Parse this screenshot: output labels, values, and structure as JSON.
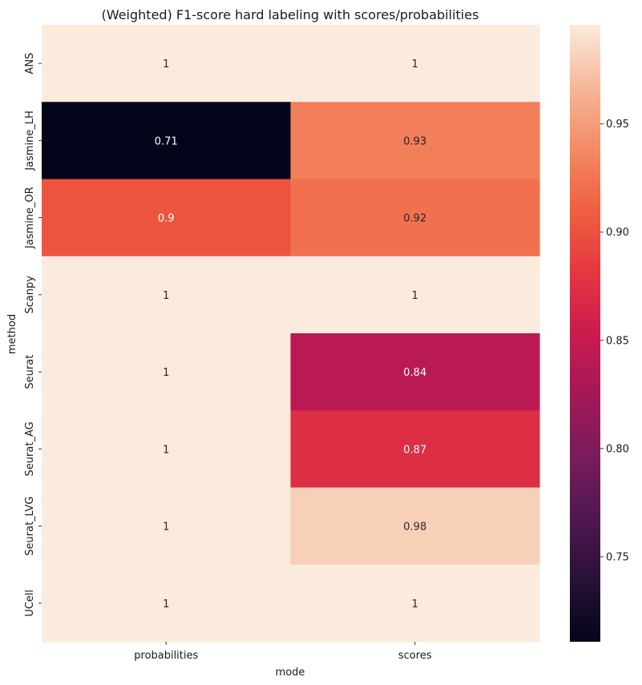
{
  "chart_data": {
    "type": "heatmap",
    "title": "(Weighted) F1-score hard labeling with scores/probabilities",
    "xlabel": "mode",
    "ylabel": "method",
    "columns": [
      "probabilities",
      "scores"
    ],
    "rows": [
      "ANS",
      "Jasmine_LH",
      "Jasmine_OR",
      "Scanpy",
      "Seurat",
      "Seurat_AG",
      "Seurat_LVG",
      "UCell"
    ],
    "values": [
      [
        0.9958,
        0.9958
      ],
      [
        0.7107,
        0.9305
      ],
      [
        0.902,
        0.922
      ],
      [
        0.9958,
        0.9958
      ],
      [
        0.9958,
        0.841
      ],
      [
        0.9958,
        0.872
      ],
      [
        0.9958,
        0.98
      ],
      [
        0.9958,
        0.9958
      ]
    ],
    "annotations": [
      [
        "1",
        "1"
      ],
      [
        "0.71",
        "0.93"
      ],
      [
        "0.9",
        "0.92"
      ],
      [
        "1",
        "1"
      ],
      [
        "1",
        "0.84"
      ],
      [
        "1",
        "0.87"
      ],
      [
        "1",
        "0.98"
      ],
      [
        "1",
        "1"
      ]
    ],
    "colorbar": {
      "vmin": 0.7107,
      "vmax": 0.9958,
      "ticks": [
        0.75,
        0.8,
        0.85,
        0.9,
        0.95
      ],
      "tick_labels": [
        "0.75",
        "0.80",
        "0.85",
        "0.90",
        "0.95"
      ],
      "colormap": "rocket"
    },
    "grid": false
  }
}
